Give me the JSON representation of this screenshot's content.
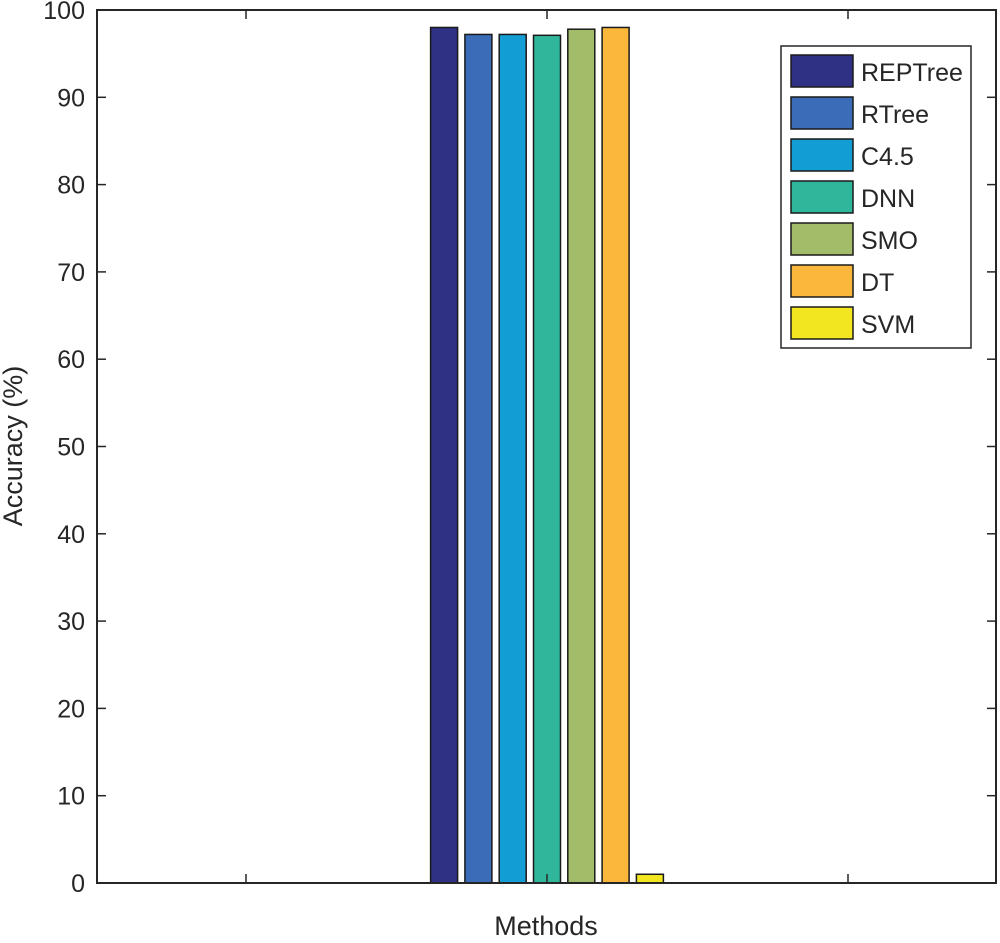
{
  "chart_data": {
    "type": "bar",
    "title": "",
    "xlabel": "Methods",
    "ylabel": "Accuracy (%)",
    "ylim": [
      0,
      100
    ],
    "yticks": [
      0,
      10,
      20,
      30,
      40,
      50,
      60,
      70,
      80,
      90,
      100
    ],
    "categories": [
      ""
    ],
    "grid": false,
    "legend_position": "top-right",
    "series": [
      {
        "name": "REPTree",
        "values": [
          98.0
        ],
        "color": "#2e3184"
      },
      {
        "name": "RTree",
        "values": [
          97.2
        ],
        "color": "#3b6cb7"
      },
      {
        "name": "C4.5",
        "values": [
          97.2
        ],
        "color": "#129dd4"
      },
      {
        "name": "DNN",
        "values": [
          97.1
        ],
        "color": "#30b69a"
      },
      {
        "name": "SMO",
        "values": [
          97.8
        ],
        "color": "#a3bc6a"
      },
      {
        "name": "DT",
        "values": [
          98.0
        ],
        "color": "#fbb73c"
      },
      {
        "name": "SVM",
        "values": [
          1.0
        ],
        "color": "#f1e620"
      }
    ]
  }
}
